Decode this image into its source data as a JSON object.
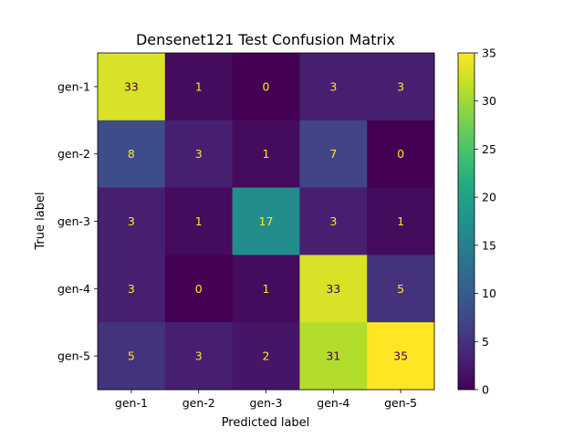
{
  "chart_data": {
    "type": "heatmap",
    "title": "Densenet121 Test Confusion Matrix",
    "xlabel": "Predicted label",
    "ylabel": "True label",
    "x_categories": [
      "gen-1",
      "gen-2",
      "gen-3",
      "gen-4",
      "gen-5"
    ],
    "y_categories": [
      "gen-1",
      "gen-2",
      "gen-3",
      "gen-4",
      "gen-5"
    ],
    "values": [
      [
        33,
        1,
        0,
        3,
        3
      ],
      [
        8,
        3,
        1,
        7,
        0
      ],
      [
        3,
        1,
        17,
        3,
        1
      ],
      [
        3,
        0,
        1,
        33,
        5
      ],
      [
        5,
        3,
        2,
        31,
        35
      ]
    ],
    "colormap": "viridis",
    "colorbar": {
      "range": [
        0,
        35
      ],
      "ticks": [
        0,
        5,
        10,
        15,
        20,
        25,
        30,
        35
      ]
    },
    "grid": false
  }
}
